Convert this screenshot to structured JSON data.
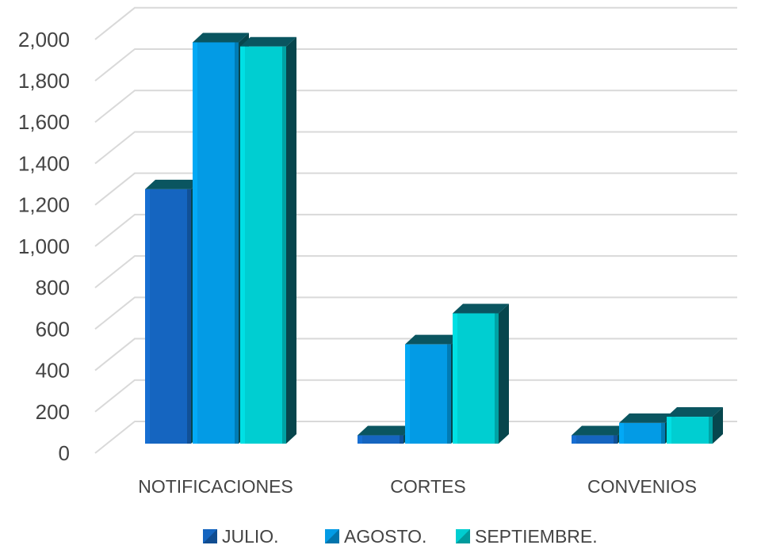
{
  "chart_data": {
    "type": "bar",
    "title": "",
    "xlabel": "",
    "ylabel": "",
    "categories": [
      "NOTIFICACIONES",
      "CORTES",
      "CONVENIOS"
    ],
    "series": [
      {
        "name": "JULIO.",
        "values": [
          1230,
          40,
          40
        ],
        "color": "#1565C0"
      },
      {
        "name": "AGOSTO.",
        "values": [
          1940,
          480,
          100
        ],
        "color": "#039BE5"
      },
      {
        "name": "SEPTIEMBRE.",
        "values": [
          1920,
          630,
          130
        ],
        "color": "#00CED1"
      }
    ],
    "ylim": [
      0,
      2000
    ],
    "yticks": [
      "0",
      "200",
      "400",
      "600",
      "800",
      "1,000",
      "1,200",
      "1,400",
      "1,600",
      "1,800",
      "2,000"
    ],
    "grid": true,
    "legend": "bottom",
    "style": "3d-column"
  }
}
